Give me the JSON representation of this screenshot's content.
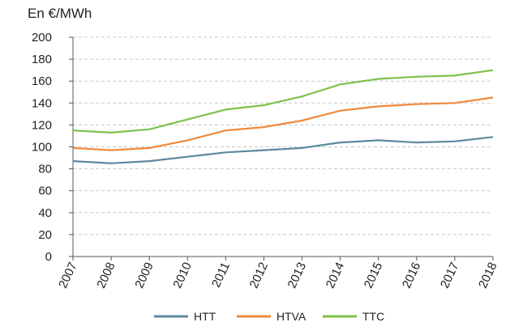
{
  "chart_data": {
    "type": "line",
    "ylabel": "En €/MWh",
    "xlabel": "",
    "title": "",
    "x": [
      "2007",
      "2008",
      "2009",
      "2010",
      "2011",
      "2012",
      "2013",
      "2014",
      "2015",
      "2016",
      "2017",
      "2018"
    ],
    "ylim": [
      0,
      200
    ],
    "yticks": [
      0,
      20,
      40,
      60,
      80,
      100,
      120,
      140,
      160,
      180,
      200
    ],
    "grid": true,
    "legend_position": "bottom",
    "series": [
      {
        "name": "HTT",
        "color": "#5b8a9d",
        "values": [
          87,
          85,
          87,
          91,
          95,
          97,
          99,
          104,
          106,
          104,
          105,
          109
        ]
      },
      {
        "name": "HTVA",
        "color": "#f0883a",
        "values": [
          99,
          97,
          99,
          106,
          115,
          118,
          124,
          133,
          137,
          139,
          140,
          145
        ]
      },
      {
        "name": "TTC",
        "color": "#7cc24a",
        "values": [
          115,
          113,
          116,
          125,
          134,
          138,
          146,
          157,
          162,
          164,
          165,
          170
        ]
      }
    ]
  }
}
